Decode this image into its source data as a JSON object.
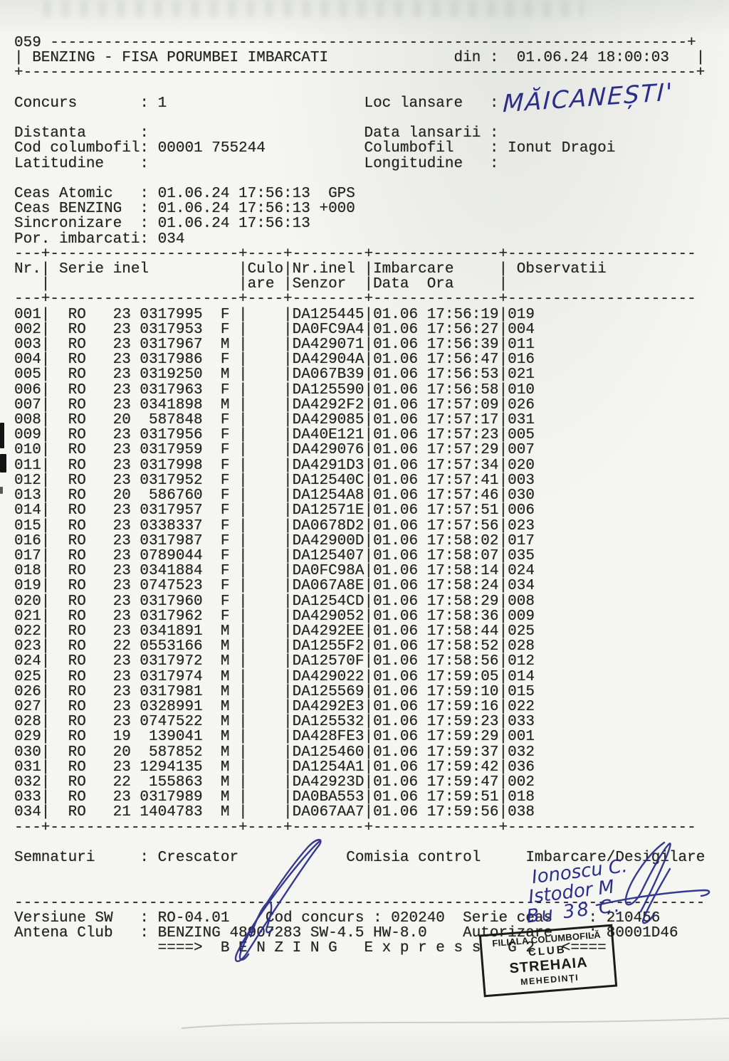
{
  "colors": {
    "ink_blue": "#2b2f8a",
    "print_black": "#242424",
    "stamp_black": "#1b1b1b"
  },
  "header": {
    "number": "059",
    "title": "BENZING - FISA PORUMBEI IMBARCATI",
    "din_label": "din :",
    "din_value": "01.06.24 18:00:03"
  },
  "fields": {
    "concurs_label": "Concurs",
    "concurs_value": "1",
    "loc_lansare_label": "Loc lansare",
    "loc_lansare_value": "",
    "distanta_label": "Distanta",
    "distanta_value": "",
    "data_lansarii_label": "Data lansarii",
    "data_lansarii_value": "",
    "cod_columbofil_label": "Cod columbofil",
    "cod_columbofil_value": "00001 755244",
    "columbofil_label": "Columbofil",
    "columbofil_value": "Ionut Dragoi",
    "latitudine_label": "Latitudine",
    "latitudine_value": "",
    "longitudine_label": "Longitudine",
    "longitudine_value": ""
  },
  "clock": [
    {
      "label": "Ceas Atomic",
      "value": "01.06.24 17:56:13  GPS"
    },
    {
      "label": "Ceas BENZING",
      "value": "01.06.24 17:56:13 +000"
    },
    {
      "label": "Sincronizare",
      "value": "01.06.24 17:56:13"
    },
    {
      "label": "Por. imbarcati",
      "value": "034"
    }
  ],
  "table": {
    "headers": {
      "nr": "Nr.",
      "serie": "Serie inel",
      "culo_1": "Culo",
      "culo_2": "are",
      "senzor_1": "Nr.inel",
      "senzor_2": "Senzor",
      "imbarcare_1": "Imbarcare",
      "imbarcare_2": "Data  Ora",
      "observatii": "Observatii"
    },
    "rows": [
      {
        "nr": "001",
        "tara": "RO",
        "an": "23",
        "inel": "0317995",
        "sex": "F",
        "senzor": "DA125445",
        "data": "01.06",
        "ora": "17:56:19",
        "obs": "019"
      },
      {
        "nr": "002",
        "tara": "RO",
        "an": "23",
        "inel": "0317953",
        "sex": "F",
        "senzor": "DA0FC9A4",
        "data": "01.06",
        "ora": "17:56:27",
        "obs": "004"
      },
      {
        "nr": "003",
        "tara": "RO",
        "an": "23",
        "inel": "0317967",
        "sex": "M",
        "senzor": "DA429071",
        "data": "01.06",
        "ora": "17:56:39",
        "obs": "011"
      },
      {
        "nr": "004",
        "tara": "RO",
        "an": "23",
        "inel": "0317986",
        "sex": "F",
        "senzor": "DA42904A",
        "data": "01.06",
        "ora": "17:56:47",
        "obs": "016"
      },
      {
        "nr": "005",
        "tara": "RO",
        "an": "23",
        "inel": "0319250",
        "sex": "M",
        "senzor": "DA067B39",
        "data": "01.06",
        "ora": "17:56:53",
        "obs": "021"
      },
      {
        "nr": "006",
        "tara": "RO",
        "an": "23",
        "inel": "0317963",
        "sex": "F",
        "senzor": "DA125590",
        "data": "01.06",
        "ora": "17:56:58",
        "obs": "010"
      },
      {
        "nr": "007",
        "tara": "RO",
        "an": "23",
        "inel": "0341898",
        "sex": "M",
        "senzor": "DA4292F2",
        "data": "01.06",
        "ora": "17:57:09",
        "obs": "026"
      },
      {
        "nr": "008",
        "tara": "RO",
        "an": "20",
        "inel": "587848",
        "sex": "F",
        "senzor": "DA429085",
        "data": "01.06",
        "ora": "17:57:17",
        "obs": "031"
      },
      {
        "nr": "009",
        "tara": "RO",
        "an": "23",
        "inel": "0317956",
        "sex": "F",
        "senzor": "DA40E121",
        "data": "01.06",
        "ora": "17:57:23",
        "obs": "005"
      },
      {
        "nr": "010",
        "tara": "RO",
        "an": "23",
        "inel": "0317959",
        "sex": "F",
        "senzor": "DA429076",
        "data": "01.06",
        "ora": "17:57:29",
        "obs": "007"
      },
      {
        "nr": "011",
        "tara": "RO",
        "an": "23",
        "inel": "0317998",
        "sex": "F",
        "senzor": "DA4291D3",
        "data": "01.06",
        "ora": "17:57:34",
        "obs": "020"
      },
      {
        "nr": "012",
        "tara": "RO",
        "an": "23",
        "inel": "0317952",
        "sex": "F",
        "senzor": "DA12540C",
        "data": "01.06",
        "ora": "17:57:41",
        "obs": "003"
      },
      {
        "nr": "013",
        "tara": "RO",
        "an": "20",
        "inel": "586760",
        "sex": "F",
        "senzor": "DA1254A8",
        "data": "01.06",
        "ora": "17:57:46",
        "obs": "030"
      },
      {
        "nr": "014",
        "tara": "RO",
        "an": "23",
        "inel": "0317957",
        "sex": "F",
        "senzor": "DA12571E",
        "data": "01.06",
        "ora": "17:57:51",
        "obs": "006"
      },
      {
        "nr": "015",
        "tara": "RO",
        "an": "23",
        "inel": "0338337",
        "sex": "F",
        "senzor": "DA0678D2",
        "data": "01.06",
        "ora": "17:57:56",
        "obs": "023"
      },
      {
        "nr": "016",
        "tara": "RO",
        "an": "23",
        "inel": "0317987",
        "sex": "F",
        "senzor": "DA42900D",
        "data": "01.06",
        "ora": "17:58:02",
        "obs": "017"
      },
      {
        "nr": "017",
        "tara": "RO",
        "an": "23",
        "inel": "0789044",
        "sex": "F",
        "senzor": "DA125407",
        "data": "01.06",
        "ora": "17:58:07",
        "obs": "035"
      },
      {
        "nr": "018",
        "tara": "RO",
        "an": "23",
        "inel": "0341884",
        "sex": "F",
        "senzor": "DA0FC98A",
        "data": "01.06",
        "ora": "17:58:14",
        "obs": "024"
      },
      {
        "nr": "019",
        "tara": "RO",
        "an": "23",
        "inel": "0747523",
        "sex": "F",
        "senzor": "DA067A8E",
        "data": "01.06",
        "ora": "17:58:24",
        "obs": "034"
      },
      {
        "nr": "020",
        "tara": "RO",
        "an": "23",
        "inel": "0317960",
        "sex": "F",
        "senzor": "DA1254CD",
        "data": "01.06",
        "ora": "17:58:29",
        "obs": "008"
      },
      {
        "nr": "021",
        "tara": "RO",
        "an": "23",
        "inel": "0317962",
        "sex": "F",
        "senzor": "DA429052",
        "data": "01.06",
        "ora": "17:58:36",
        "obs": "009"
      },
      {
        "nr": "022",
        "tara": "RO",
        "an": "23",
        "inel": "0341891",
        "sex": "M",
        "senzor": "DA4292EE",
        "data": "01.06",
        "ora": "17:58:44",
        "obs": "025"
      },
      {
        "nr": "023",
        "tara": "RO",
        "an": "22",
        "inel": "0553166",
        "sex": "M",
        "senzor": "DA1255F2",
        "data": "01.06",
        "ora": "17:58:52",
        "obs": "028"
      },
      {
        "nr": "024",
        "tara": "RO",
        "an": "23",
        "inel": "0317972",
        "sex": "M",
        "senzor": "DA12570F",
        "data": "01.06",
        "ora": "17:58:56",
        "obs": "012"
      },
      {
        "nr": "025",
        "tara": "RO",
        "an": "23",
        "inel": "0317974",
        "sex": "M",
        "senzor": "DA429022",
        "data": "01.06",
        "ora": "17:59:05",
        "obs": "014"
      },
      {
        "nr": "026",
        "tara": "RO",
        "an": "23",
        "inel": "0317981",
        "sex": "M",
        "senzor": "DA125569",
        "data": "01.06",
        "ora": "17:59:10",
        "obs": "015"
      },
      {
        "nr": "027",
        "tara": "RO",
        "an": "23",
        "inel": "0328991",
        "sex": "M",
        "senzor": "DA4292E3",
        "data": "01.06",
        "ora": "17:59:16",
        "obs": "022"
      },
      {
        "nr": "028",
        "tara": "RO",
        "an": "23",
        "inel": "0747522",
        "sex": "M",
        "senzor": "DA125532",
        "data": "01.06",
        "ora": "17:59:23",
        "obs": "033"
      },
      {
        "nr": "029",
        "tara": "RO",
        "an": "19",
        "inel": "139041",
        "sex": "M",
        "senzor": "DA428FE3",
        "data": "01.06",
        "ora": "17:59:29",
        "obs": "001"
      },
      {
        "nr": "030",
        "tara": "RO",
        "an": "20",
        "inel": "587852",
        "sex": "M",
        "senzor": "DA125460",
        "data": "01.06",
        "ora": "17:59:37",
        "obs": "032"
      },
      {
        "nr": "031",
        "tara": "RO",
        "an": "23",
        "inel": "1294135",
        "sex": "M",
        "senzor": "DA1254A1",
        "data": "01.06",
        "ora": "17:59:42",
        "obs": "036"
      },
      {
        "nr": "032",
        "tara": "RO",
        "an": "22",
        "inel": "155863",
        "sex": "M",
        "senzor": "DA42923D",
        "data": "01.06",
        "ora": "17:59:47",
        "obs": "002"
      },
      {
        "nr": "033",
        "tara": "RO",
        "an": "23",
        "inel": "0317989",
        "sex": "M",
        "senzor": "DA0BA553",
        "data": "01.06",
        "ora": "17:59:51",
        "obs": "018"
      },
      {
        "nr": "034",
        "tara": "RO",
        "an": "21",
        "inel": "1404783",
        "sex": "M",
        "senzor": "DA067AA7",
        "data": "01.06",
        "ora": "17:59:56",
        "obs": "038"
      }
    ]
  },
  "signatures": {
    "label": "Semnaturi",
    "crescator": "Crescator",
    "comisia": "Comisia control",
    "imbarcare": "Imbarcare/Desigilare"
  },
  "footer": {
    "versiune_label": "Versiune SW",
    "versiune_value": "RO-04.01",
    "cod_concurs_label": "Cod concurs",
    "cod_concurs_value": "020240",
    "serie_ceas_label": "Serie ceas",
    "serie_ceas_value": "210456",
    "antena_label": "Antena Club",
    "antena_value": "BENZING 48907283 SW-4.5 HW-8.0",
    "autorizare_label": "Autorizare",
    "autorizare_value": "80001D46",
    "banner": "====>  B E N Z I N G   E x p r e s s   G 2   <===="
  },
  "handwriting": {
    "loc_lansare": "MĂICANEȘTI'",
    "committee_names": [
      "Ionoscu C.",
      "Istodor M",
      "Bu 38 C."
    ]
  },
  "stamp": {
    "lines": [
      "FILIALA COLUMBOFILĂ",
      "CLUB",
      "STREHAIA",
      "MEHEDINȚI"
    ]
  }
}
